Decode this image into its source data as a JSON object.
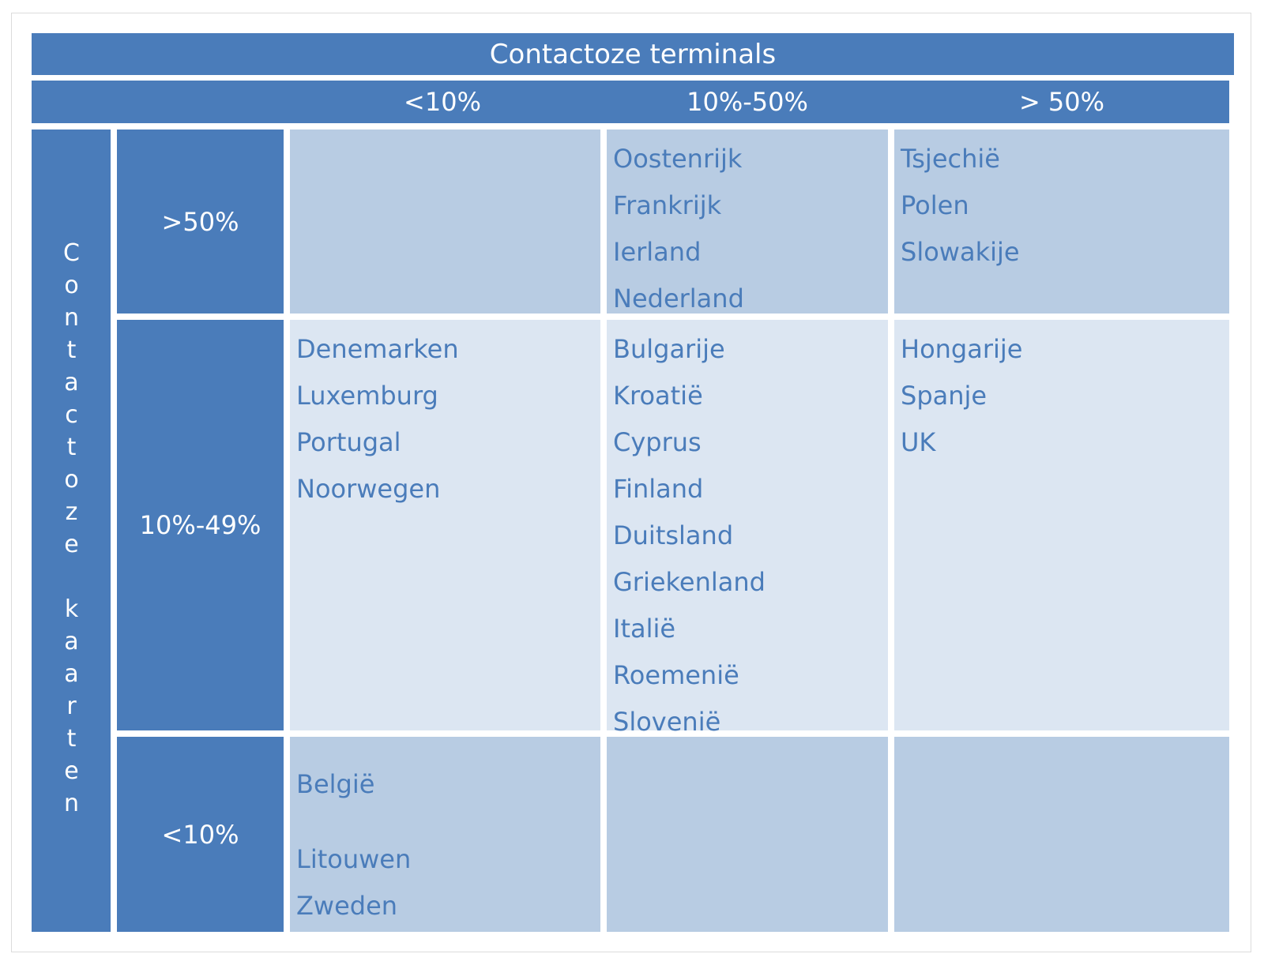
{
  "title": "Contactoze terminals",
  "columns": [
    "<10%",
    "10%-50%",
    "> 50%"
  ],
  "side_label": "Contactoze kaarten",
  "rows": [
    {
      "label": ">50%",
      "cells": [
        [],
        [
          "Oostenrijk",
          "Frankrijk",
          "Ierland",
          "Nederland"
        ],
        [
          "Tsjechië",
          "Polen",
          "Slowakije"
        ]
      ]
    },
    {
      "label": "10%-49%",
      "cells": [
        [
          "Denemarken",
          "Luxemburg",
          "Portugal",
          "Noorwegen"
        ],
        [
          "Bulgarije",
          "Kroatië",
          "Cyprus",
          "Finland",
          "Duitsland",
          "Griekenland",
          "Italië",
          "Roemenië",
          "Slovenië"
        ],
        [
          "Hongarije",
          "Spanje",
          "UK"
        ]
      ]
    },
    {
      "label": "<10%",
      "cells": [
        [
          "België",
          "",
          "Litouwen",
          "Zweden"
        ],
        [],
        []
      ]
    }
  ],
  "colors": {
    "header": "#4a7cba",
    "cell_dark": "#b8cce3",
    "cell_light": "#dce6f2",
    "text": "#4a7cba"
  }
}
